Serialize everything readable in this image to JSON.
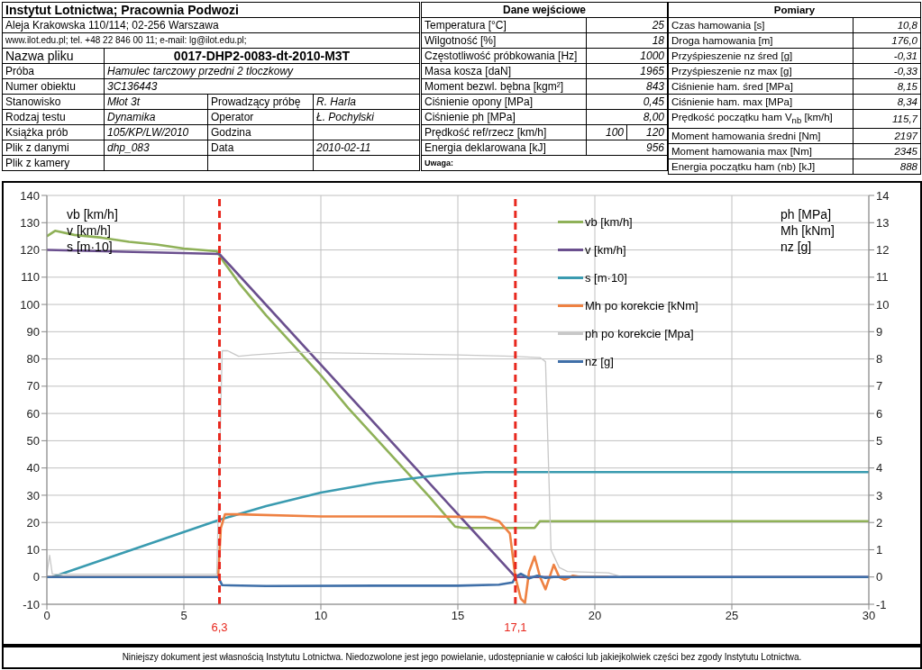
{
  "chart_data": {
    "type": "line",
    "xlim": [
      0,
      30
    ],
    "xticks": [
      0,
      5,
      10,
      15,
      20,
      25,
      30
    ],
    "ylim": [
      -10,
      140
    ],
    "yticks": [
      -10,
      0,
      10,
      20,
      30,
      40,
      50,
      60,
      70,
      80,
      90,
      100,
      110,
      120,
      130,
      140
    ],
    "y2lim": [
      -1,
      14
    ],
    "y2ticks": [
      -1,
      0,
      1,
      2,
      3,
      4,
      5,
      6,
      7,
      8,
      9,
      10,
      11,
      12,
      13,
      14
    ],
    "ylabel": "vb [km/h]\nv [km/h]\ns [m·10]",
    "y2label": "ph [MPa]\nMh [kNm]\nnz [g]",
    "grid": true,
    "legend": "top right",
    "series": [
      {
        "name": "vb [km/h]",
        "color": "#8fb158",
        "x": [
          0,
          0.3,
          1,
          2,
          3,
          4,
          5,
          6.2,
          6.5,
          7,
          8,
          9,
          10,
          11,
          12,
          13,
          14,
          14.9,
          15.2,
          17.8,
          18,
          30
        ],
        "values": [
          125,
          127,
          125.5,
          124.5,
          123,
          122,
          120.5,
          119.5,
          115,
          108,
          96,
          85,
          74,
          62,
          51,
          40,
          29,
          18.5,
          18,
          18,
          20.5,
          20.5
        ]
      },
      {
        "name": "v [km/h]",
        "color": "#6a4f8e",
        "x": [
          0,
          6.3,
          17.1,
          30
        ],
        "values": [
          120,
          118.5,
          0,
          0
        ]
      },
      {
        "name": "s [m·10]",
        "color": "#3a9bb0",
        "x": [
          0.2,
          6.3,
          8,
          10,
          12,
          14,
          15,
          16,
          17,
          30
        ],
        "values": [
          0,
          21,
          26,
          31,
          34.5,
          37,
          38,
          38.5,
          38.5,
          38.5
        ]
      },
      {
        "name": "Mh po korekcie [kNm]",
        "color": "#ee8142",
        "axis": "y2",
        "x": [
          0,
          6.25,
          6.35,
          6.5,
          7,
          10,
          14,
          16,
          16.5,
          16.9,
          17.1,
          17.3,
          17.45,
          17.6,
          17.8,
          18,
          18.2,
          18.5,
          18.7,
          18.9,
          19.2,
          19.5,
          20.5
        ],
        "values": [
          0,
          0,
          1.8,
          2.3,
          2.3,
          2.22,
          2.22,
          2.2,
          2.05,
          1.6,
          0,
          -0.8,
          -0.95,
          0.2,
          0.75,
          0,
          -0.45,
          0.45,
          0,
          -0.1,
          0.05,
          0,
          0
        ]
      },
      {
        "name": "ph po korekcie [Mpa]",
        "color": "#c8c8c8",
        "axis": "y2",
        "x": [
          0,
          0.1,
          0.2,
          6.2,
          6.4,
          6.6,
          7,
          7.5,
          9,
          12,
          15,
          17,
          18,
          18.2,
          18.4,
          18.7,
          19,
          20.5,
          21
        ],
        "values": [
          0.1,
          0.8,
          0.1,
          0.1,
          8.3,
          8.3,
          8.1,
          8.15,
          8.25,
          8.2,
          8.15,
          8.1,
          8.05,
          7.9,
          1,
          0.35,
          0.2,
          0.15,
          0
        ]
      },
      {
        "name": "nz [g]",
        "color": "#3f6fa8",
        "axis": "y2",
        "x": [
          0,
          6.25,
          6.4,
          8,
          12,
          15,
          16.5,
          17,
          17.1,
          17.3,
          17.6,
          17.9,
          18.2,
          18.5,
          30
        ],
        "values": [
          0,
          0,
          -0.3,
          -0.33,
          -0.32,
          -0.32,
          -0.28,
          -0.2,
          0,
          0.12,
          -0.05,
          0.05,
          -0.03,
          0,
          0
        ]
      }
    ],
    "ref_lines": [
      {
        "axis": "x",
        "value": 6.3,
        "label": "6,3",
        "color": "#e8281e",
        "line_style": "dashed"
      },
      {
        "axis": "x",
        "value": 17.1,
        "label": "17,1",
        "color": "#e8281e",
        "line_style": "dashed"
      }
    ],
    "annotations": [
      "Instytut Lotnictwa; Pracownia Podwozi",
      "Aleja Krakowska 110/114; 02-256 Warszawa",
      "www.ilot.edu.pl; tel. +48 22 846 00 11; e-mail: lg@ilot.edu.pl;",
      "Nazwa pliku",
      "0017-DHP2-0083-dt-2010-M3T",
      "Próba",
      "Hamulec tarczowy przedni 2 tloczkowy",
      "Numer obiektu",
      "3C136443",
      "Stanowisko",
      "Młot 3t",
      "Prowadzący próbę",
      "R. Harla",
      "Rodzaj testu",
      "Dynamika",
      "Operator",
      "Ł. Pochylski",
      "Książka prób",
      "105/KP/LW/2010",
      "Godzina",
      "Plik z danymi",
      "dhp_083",
      "Data",
      "2010-02-11",
      "Plik z kamery",
      "Dane wejściowe",
      "Temperatura [°C]",
      "25",
      "Wilgotność [%]",
      "18",
      "Częstotliwość próbkowania [Hz]",
      "1000",
      "Masa kosza [daN]",
      "1965",
      "Moment bezwl. bębna [kgm²]",
      "843",
      "Ciśnienie opony [MPa]",
      "0,45",
      "Ciśnienie ph [MPa]",
      "8,00",
      "Prędkość ref/rzecz [km/h]",
      "100",
      "120",
      "Energia deklarowana [kJ]",
      "956",
      "Uwaga:",
      "Pomiary",
      "Czas hamowania [s]",
      "10,8",
      "Droga hamowania [m]",
      "176,0",
      "Przyśpieszenie nz śred [g]",
      "-0,31",
      "Przyśpieszenie nz max [g]",
      "-0,33",
      "Ciśnienie ham. śred [MPa]",
      "8,15",
      "Ciśnienie ham. max [MPa]",
      "8,34",
      "Prędkość początku ham V$_{nb}$ [km/h]",
      "115,7",
      "Moment hamowania średni [Nm]",
      "2197",
      "Moment hamowania max [Nm]",
      "2345",
      "Energia początku ham (nb) [kJ]",
      "888",
      "Niniejszy dokument jest własnością Instytutu Lotnictwa. Niedozwolone jest jego powielanie, udostępnianie w całości lub jakiejkolwiek części bez zgody Instytutu Lotnictwa."
    ]
  }
}
